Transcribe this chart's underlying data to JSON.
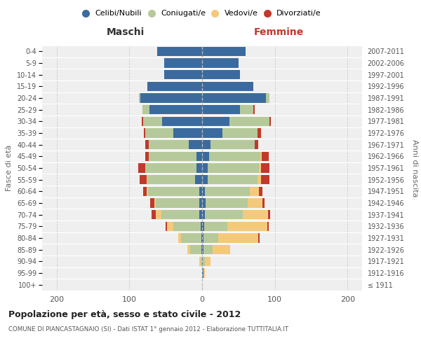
{
  "age_groups": [
    "100+",
    "95-99",
    "90-94",
    "85-89",
    "80-84",
    "75-79",
    "70-74",
    "65-69",
    "60-64",
    "55-59",
    "50-54",
    "45-49",
    "40-44",
    "35-39",
    "30-34",
    "25-29",
    "20-24",
    "15-19",
    "10-14",
    "5-9",
    "0-4"
  ],
  "birth_years": [
    "≤ 1911",
    "1912-1916",
    "1917-1921",
    "1922-1926",
    "1927-1931",
    "1932-1936",
    "1937-1941",
    "1942-1946",
    "1947-1951",
    "1952-1956",
    "1957-1961",
    "1962-1966",
    "1967-1971",
    "1972-1976",
    "1977-1981",
    "1982-1986",
    "1987-1991",
    "1992-1996",
    "1997-2001",
    "2002-2006",
    "2007-2011"
  ],
  "male_celibe": [
    0,
    0,
    0,
    1,
    1,
    2,
    4,
    4,
    4,
    10,
    8,
    8,
    18,
    40,
    55,
    72,
    85,
    75,
    52,
    52,
    62
  ],
  "male_coniugato": [
    0,
    0,
    2,
    15,
    28,
    38,
    52,
    60,
    70,
    65,
    70,
    65,
    55,
    38,
    26,
    10,
    2,
    0,
    0,
    0,
    0
  ],
  "male_vedovo": [
    0,
    0,
    2,
    4,
    4,
    8,
    8,
    2,
    2,
    1,
    0,
    0,
    0,
    0,
    0,
    0,
    0,
    0,
    0,
    0,
    0
  ],
  "male_divorziato": [
    0,
    0,
    0,
    0,
    0,
    2,
    5,
    5,
    5,
    10,
    10,
    5,
    5,
    2,
    2,
    0,
    0,
    0,
    0,
    0,
    0
  ],
  "fem_nubile": [
    0,
    2,
    1,
    2,
    2,
    3,
    4,
    5,
    4,
    8,
    8,
    10,
    12,
    28,
    38,
    52,
    88,
    70,
    52,
    50,
    60
  ],
  "fem_coniugata": [
    0,
    0,
    3,
    12,
    20,
    32,
    52,
    58,
    62,
    68,
    70,
    70,
    60,
    48,
    55,
    18,
    5,
    0,
    0,
    0,
    0
  ],
  "fem_vedova": [
    0,
    2,
    8,
    25,
    55,
    55,
    35,
    20,
    12,
    5,
    3,
    2,
    0,
    0,
    0,
    0,
    0,
    0,
    0,
    0,
    0
  ],
  "fem_divorziata": [
    0,
    0,
    0,
    0,
    2,
    2,
    3,
    3,
    5,
    12,
    12,
    10,
    5,
    5,
    2,
    2,
    0,
    0,
    0,
    0,
    0
  ],
  "colors": {
    "celibe": "#3b6b9e",
    "coniugato": "#b5c99a",
    "vedovo": "#f5c97a",
    "divorziato": "#c0392b"
  },
  "legend_labels": [
    "Celibi/Nubili",
    "Coniugati/e",
    "Vedovi/e",
    "Divorziati/e"
  ],
  "title": "Popolazione per età, sesso e stato civile - 2012",
  "subtitle": "COMUNE DI PIANCASTAGNAIO (SI) - Dati ISTAT 1° gennaio 2012 - Elaborazione TUTTITALIA.IT",
  "label_maschi": "Maschi",
  "label_femmine": "Femmine",
  "ylabel_left": "Fasce di età",
  "ylabel_right": "Anni di nascita",
  "xlim": 220,
  "bg_color": "#efefef",
  "grid_color": "#cccccc"
}
